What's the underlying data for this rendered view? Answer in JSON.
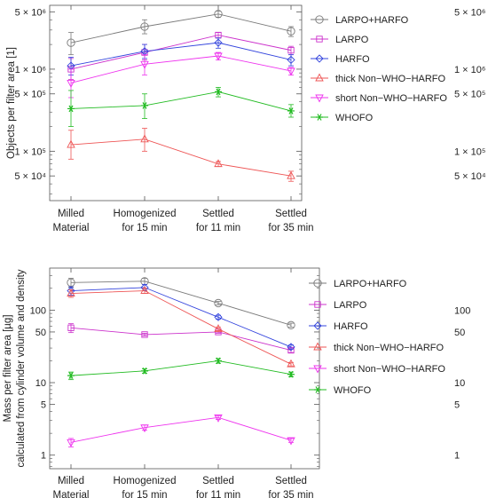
{
  "chart_data": [
    {
      "type": "line",
      "ylabel": "Objects per filter area [1]",
      "yscale": "log",
      "ylim": [
        25000,
        6000000
      ],
      "categories": [
        "Milled\nMaterial",
        "Homogenized\nfor 15 min",
        "Settled\nfor 11 min",
        "Settled\nfor 35 min"
      ],
      "y_ticks": [
        {
          "value": 5000000,
          "label": "5 × 10⁶"
        },
        {
          "value": 1000000,
          "label": "1 × 10⁶"
        },
        {
          "value": 500000,
          "label": "5 × 10⁵"
        },
        {
          "value": 100000,
          "label": "1 × 10⁵"
        },
        {
          "value": 50000,
          "label": "5 × 10⁴"
        }
      ],
      "y_minor_ticks": [
        30000,
        40000,
        60000,
        70000,
        80000,
        90000,
        200000,
        300000,
        400000,
        600000,
        700000,
        800000,
        900000,
        2000000,
        3000000,
        4000000
      ],
      "legend": "right",
      "grid": false,
      "series": [
        {
          "name": "LARPO+HARFO",
          "marker": "circle",
          "color": "#7a7a7a",
          "values": [
            2100000,
            3300000,
            4700000,
            2900000
          ],
          "err": [
            [
              1500000,
              2800000
            ],
            [
              2700000,
              4000000
            ],
            [
              4300000,
              5100000
            ],
            [
              2500000,
              3300000
            ]
          ]
        },
        {
          "name": "LARPO",
          "marker": "square",
          "color": "#cc33cc",
          "values": [
            1000000,
            1600000,
            2600000,
            1700000
          ],
          "err": [
            [
              750000,
              1350000
            ],
            [
              1300000,
              2000000
            ],
            [
              2400000,
              2800000
            ],
            [
              1500000,
              1900000
            ]
          ]
        },
        {
          "name": "HARFO",
          "marker": "diamond",
          "color": "#3344dd",
          "values": [
            1100000,
            1650000,
            2100000,
            1300000
          ],
          "err": [
            [
              850000,
              1400000
            ],
            [
              1350000,
              2000000
            ],
            [
              1800000,
              2400000
            ],
            [
              1100000,
              1500000
            ]
          ]
        },
        {
          "name": "thick Non−WHO−HARFO",
          "marker": "triangle-up",
          "color": "#ee5555",
          "values": [
            120000,
            140000,
            70000,
            50000
          ],
          "err": [
            [
              80000,
              180000
            ],
            [
              100000,
              190000
            ],
            [
              65000,
              75000
            ],
            [
              43000,
              57000
            ]
          ]
        },
        {
          "name": "short Non−WHO−HARFO",
          "marker": "triangle-down",
          "color": "#ee33ee",
          "values": [
            680000,
            1150000,
            1450000,
            950000
          ],
          "err": [
            [
              450000,
              1000000
            ],
            [
              850000,
              1500000
            ],
            [
              1300000,
              1600000
            ],
            [
              850000,
              1050000
            ]
          ]
        },
        {
          "name": "WHOFO",
          "marker": "asterisk",
          "color": "#22bb22",
          "values": [
            330000,
            360000,
            530000,
            310000
          ],
          "err": [
            [
              200000,
              550000
            ],
            [
              250000,
              500000
            ],
            [
              460000,
              600000
            ],
            [
              260000,
              370000
            ]
          ]
        }
      ]
    },
    {
      "type": "line",
      "ylabel": "Mass per filter area [µg]",
      "ylabel2": "calculated from cylinder volume and density",
      "yscale": "log",
      "ylim": [
        0.65,
        380
      ],
      "categories": [
        "Milled\nMaterial",
        "Homogenized\nfor 15 min",
        "Settled\nfor 11 min",
        "Settled\nfor 35 min"
      ],
      "y_ticks": [
        {
          "value": 100,
          "label": "100"
        },
        {
          "value": 50,
          "label": "50"
        },
        {
          "value": 10,
          "label": "10"
        },
        {
          "value": 5,
          "label": "5"
        },
        {
          "value": 1,
          "label": "1"
        }
      ],
      "y_minor_ticks": [
        0.7,
        0.8,
        0.9,
        2,
        3,
        4,
        6,
        7,
        8,
        9,
        20,
        30,
        40,
        60,
        70,
        80,
        90,
        200,
        300
      ],
      "legend": "right",
      "grid": false,
      "series": [
        {
          "name": "LARPO+HARFO",
          "marker": "circle",
          "color": "#7a7a7a",
          "values": [
            240,
            250,
            125,
            62
          ],
          "err": [
            [
              205,
              275
            ],
            [
              225,
              275
            ],
            [
              118,
              132
            ],
            [
              58,
              66
            ]
          ]
        },
        {
          "name": "LARPO",
          "marker": "square",
          "color": "#cc33cc",
          "values": [
            57,
            46,
            50,
            28
          ],
          "err": [
            [
              49,
              65
            ],
            [
              44,
              48
            ],
            [
              48,
              52
            ],
            [
              26,
              30
            ]
          ]
        },
        {
          "name": "HARFO",
          "marker": "diamond",
          "color": "#3344dd",
          "values": [
            185,
            205,
            80,
            31
          ],
          "err": [
            [
              160,
              210
            ],
            [
              185,
              225
            ],
            [
              75,
              85
            ],
            [
              29,
              33
            ]
          ]
        },
        {
          "name": "thick Non−WHO−HARFO",
          "marker": "triangle-up",
          "color": "#ee5555",
          "values": [
            170,
            185,
            55,
            18
          ],
          "err": [
            [
              150,
              190
            ],
            [
              170,
              200
            ],
            [
              52,
              58
            ],
            [
              17,
              19
            ]
          ]
        },
        {
          "name": "short Non−WHO−HARFO",
          "marker": "triangle-down",
          "color": "#ee33ee",
          "values": [
            1.5,
            2.4,
            3.3,
            1.6
          ],
          "err": [
            [
              1.3,
              1.7
            ],
            [
              2.2,
              2.6
            ],
            [
              3.1,
              3.5
            ],
            [
              1.5,
              1.7
            ]
          ]
        },
        {
          "name": "WHOFO",
          "marker": "asterisk",
          "color": "#22bb22",
          "values": [
            12.5,
            14.5,
            20,
            13
          ],
          "err": [
            [
              11,
              14
            ],
            [
              13.5,
              15.5
            ],
            [
              18.5,
              21.5
            ],
            [
              12,
              14
            ]
          ]
        }
      ]
    }
  ]
}
